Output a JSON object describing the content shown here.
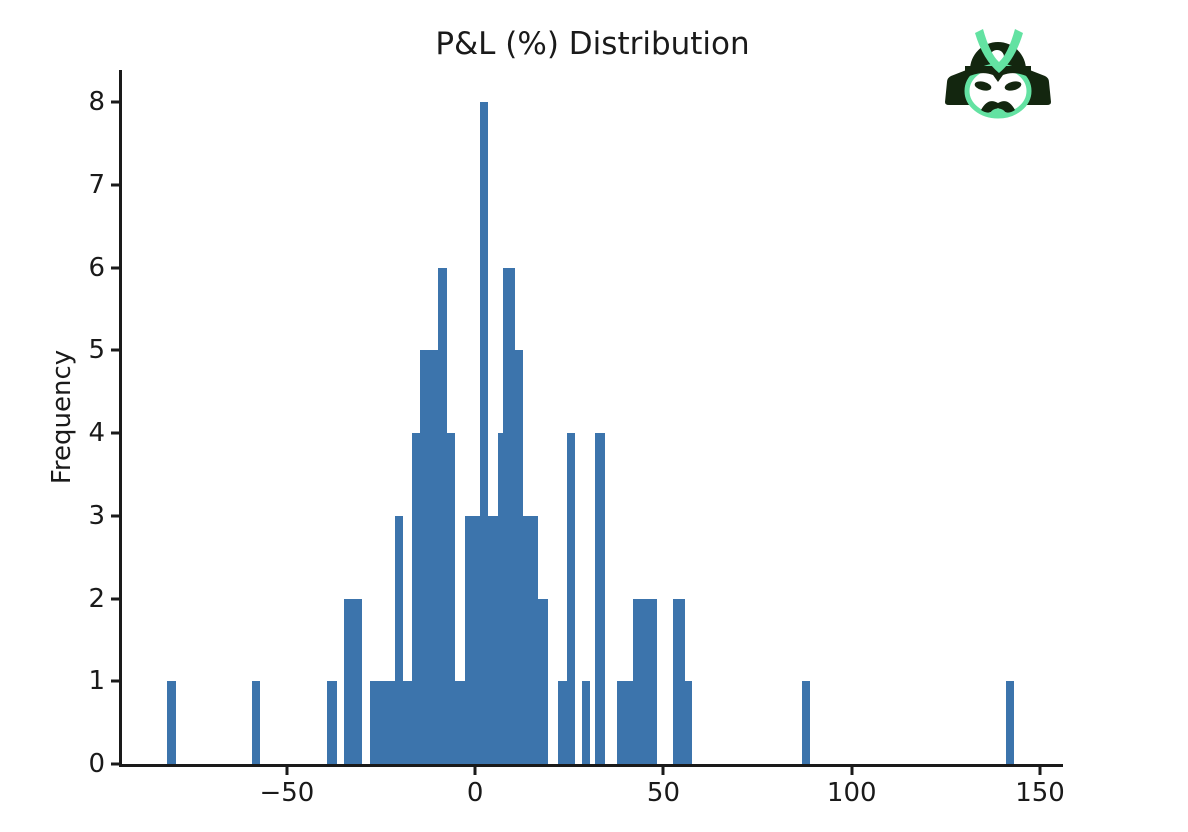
{
  "page": {
    "background": "#ffffff"
  },
  "chart_data": {
    "type": "bar",
    "subtype": "histogram",
    "title": "P&L (%) Distribution",
    "xlabel": "",
    "ylabel": "Frequency",
    "xlim": [
      -93.8,
      156.1
    ],
    "ylim": [
      0,
      8.39
    ],
    "xticks": [
      -50,
      0,
      50,
      100,
      150
    ],
    "xtick_labels": [
      "−50",
      "0",
      "50",
      "100",
      "150"
    ],
    "yticks": [
      0,
      1,
      2,
      3,
      4,
      5,
      6,
      7,
      8
    ],
    "ytick_labels": [
      "0",
      "1",
      "2",
      "3",
      "4",
      "5",
      "6",
      "7",
      "8"
    ],
    "grid": false,
    "legend": null,
    "bar_color": "#3c74ac",
    "axis_color": "#1a1a1a",
    "approx_bin_width": 2.25,
    "bars": [
      {
        "x0": -81.8,
        "x1": -79.5,
        "count": 1
      },
      {
        "x0": -59.2,
        "x1": -57.1,
        "count": 1
      },
      {
        "x0": -39.3,
        "x1": -36.7,
        "count": 1
      },
      {
        "x0": -34.8,
        "x1": -30.0,
        "count": 2
      },
      {
        "x0": -27.9,
        "x1": -21.2,
        "count": 1
      },
      {
        "x0": -21.2,
        "x1": -19.1,
        "count": 3
      },
      {
        "x0": -19.1,
        "x1": -16.9,
        "count": 1
      },
      {
        "x0": -16.9,
        "x1": -14.6,
        "count": 4
      },
      {
        "x0": -14.6,
        "x1": -9.8,
        "count": 5
      },
      {
        "x0": -9.8,
        "x1": -7.6,
        "count": 6
      },
      {
        "x0": -7.6,
        "x1": -5.3,
        "count": 4
      },
      {
        "x0": -5.3,
        "x1": -2.8,
        "count": 1
      },
      {
        "x0": -2.8,
        "x1": 1.2,
        "count": 3
      },
      {
        "x0": 1.2,
        "x1": 3.3,
        "count": 8
      },
      {
        "x0": 3.3,
        "x1": 6.1,
        "count": 3
      },
      {
        "x0": 6.1,
        "x1": 7.3,
        "count": 4
      },
      {
        "x0": 7.3,
        "x1": 10.6,
        "count": 6
      },
      {
        "x0": 10.6,
        "x1": 12.7,
        "count": 5
      },
      {
        "x0": 12.7,
        "x1": 16.7,
        "count": 3
      },
      {
        "x0": 16.7,
        "x1": 19.4,
        "count": 2
      },
      {
        "x0": 22.0,
        "x1": 24.4,
        "count": 1
      },
      {
        "x0": 24.4,
        "x1": 26.6,
        "count": 4
      },
      {
        "x0": 28.4,
        "x1": 30.5,
        "count": 1
      },
      {
        "x0": 31.9,
        "x1": 34.5,
        "count": 4
      },
      {
        "x0": 37.7,
        "x1": 42.0,
        "count": 1
      },
      {
        "x0": 42.0,
        "x1": 48.3,
        "count": 2
      },
      {
        "x0": 52.6,
        "x1": 55.8,
        "count": 2
      },
      {
        "x0": 55.8,
        "x1": 57.6,
        "count": 1
      },
      {
        "x0": 86.8,
        "x1": 89.0,
        "count": 1
      },
      {
        "x0": 141.0,
        "x1": 143.1,
        "count": 1
      }
    ]
  },
  "logo": {
    "name": "samurai-helmet",
    "color_dark": "#13260f",
    "color_mint": "#63e2a2",
    "color_face": "#ffffff"
  }
}
